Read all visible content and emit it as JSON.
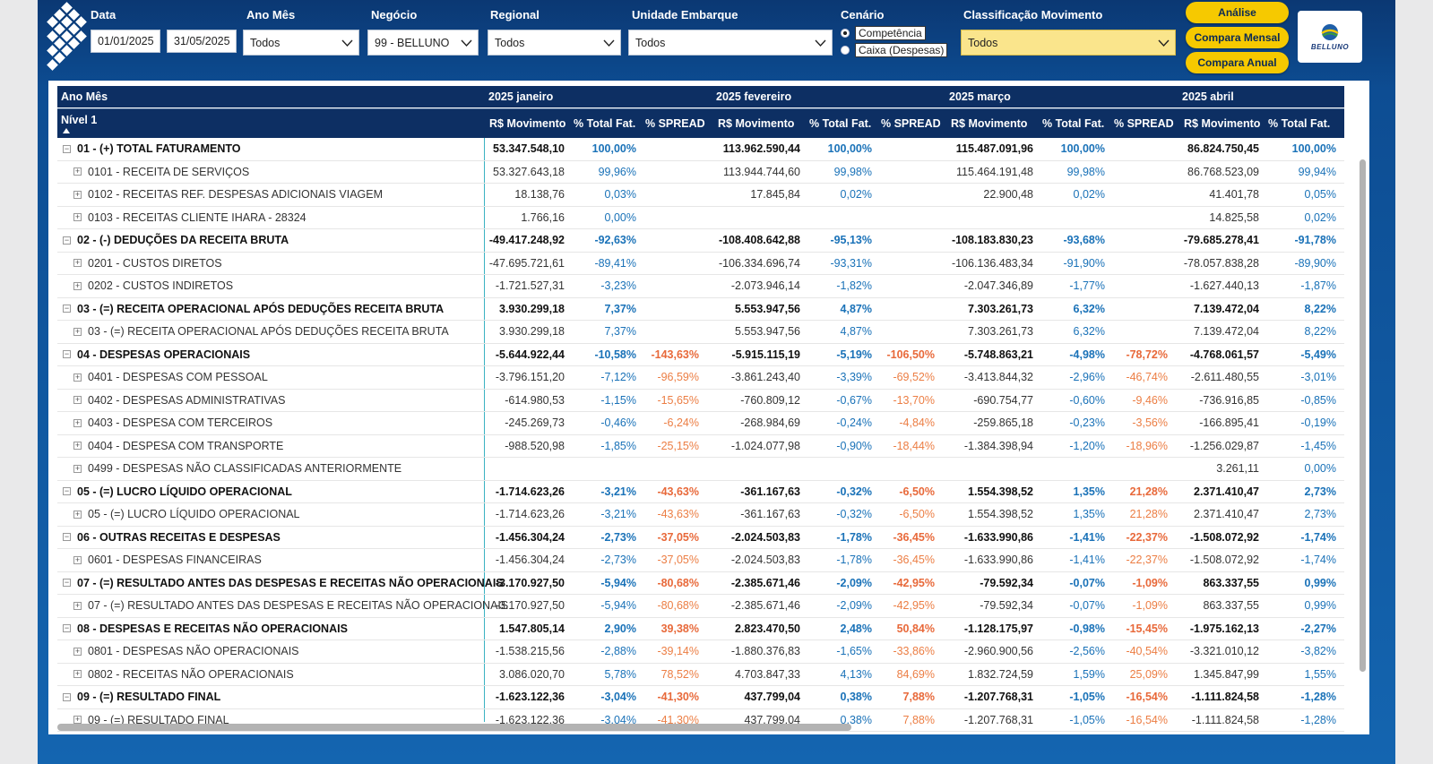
{
  "filters": {
    "data_label": "Data",
    "date_start": "01/01/2025",
    "date_end": "31/05/2025",
    "ano_mes_label": "Ano Mês",
    "ano_mes_value": "Todos",
    "negocio_label": "Negócio",
    "negocio_value": "99 - BELLUNO",
    "regional_label": "Regional",
    "regional_value": "Todos",
    "unidade_label": "Unidade Embarque",
    "unidade_value": "Todos",
    "cenario_label": "Cenário",
    "cenario_options": [
      "Competência",
      "Caixa (Despesas)"
    ],
    "classificacao_label": "Classificação Movimento",
    "classificacao_value": "Todos"
  },
  "buttons": {
    "analise": "Análise",
    "compara_mensal": "Compara Mensal",
    "compara_anual": "Compara Anual"
  },
  "brand": {
    "name": "BELLUNO"
  },
  "table": {
    "header_top_label": "Ano Mês",
    "header_sub_label": "Nível 1",
    "months": [
      "2025 janeiro",
      "2025 fevereiro",
      "2025 março",
      "2025 abril"
    ],
    "col_labels": [
      "R$ Movimento",
      "% Total Fat.",
      "% SPREAD"
    ],
    "rows": [
      {
        "label": "01 - (+) TOTAL FATURAMENTO",
        "bold": true,
        "m": [
          [
            "53.347.548,10",
            "100,00%",
            ""
          ],
          [
            "113.962.590,44",
            "100,00%",
            ""
          ],
          [
            "115.487.091,96",
            "100,00%",
            ""
          ],
          [
            "86.824.750,45",
            "100,00%"
          ]
        ]
      },
      {
        "label": "0101 - RECEITA DE SERVIÇOS",
        "bold": false,
        "m": [
          [
            "53.327.643,18",
            "99,96%",
            ""
          ],
          [
            "113.944.744,60",
            "99,98%",
            ""
          ],
          [
            "115.464.191,48",
            "99,98%",
            ""
          ],
          [
            "86.768.523,09",
            "99,94%"
          ]
        ]
      },
      {
        "label": "0102 - RECEITAS REF. DESPESAS ADICIONAIS VIAGEM",
        "bold": false,
        "m": [
          [
            "18.138,76",
            "0,03%",
            ""
          ],
          [
            "17.845,84",
            "0,02%",
            ""
          ],
          [
            "22.900,48",
            "0,02%",
            ""
          ],
          [
            "41.401,78",
            "0,05%"
          ]
        ]
      },
      {
        "label": "0103 - RECEITAS CLIENTE IHARA - 28324",
        "bold": false,
        "m": [
          [
            "1.766,16",
            "0,00%",
            ""
          ],
          [
            "",
            "",
            ""
          ],
          [
            "",
            "",
            ""
          ],
          [
            "14.825,58",
            "0,02%"
          ]
        ]
      },
      {
        "label": "02 - (-) DEDUÇÕES DA RECEITA BRUTA",
        "bold": true,
        "m": [
          [
            "-49.417.248,92",
            "-92,63%",
            ""
          ],
          [
            "-108.408.642,88",
            "-95,13%",
            ""
          ],
          [
            "-108.183.830,23",
            "-93,68%",
            ""
          ],
          [
            "-79.685.278,41",
            "-91,78%"
          ]
        ]
      },
      {
        "label": "0201 - CUSTOS DIRETOS",
        "bold": false,
        "m": [
          [
            "-47.695.721,61",
            "-89,41%",
            ""
          ],
          [
            "-106.334.696,74",
            "-93,31%",
            ""
          ],
          [
            "-106.136.483,34",
            "-91,90%",
            ""
          ],
          [
            "-78.057.838,28",
            "-89,90%"
          ]
        ]
      },
      {
        "label": "0202 - CUSTOS INDIRETOS",
        "bold": false,
        "m": [
          [
            "-1.721.527,31",
            "-3,23%",
            ""
          ],
          [
            "-2.073.946,14",
            "-1,82%",
            ""
          ],
          [
            "-2.047.346,89",
            "-1,77%",
            ""
          ],
          [
            "-1.627.440,13",
            "-1,87%"
          ]
        ]
      },
      {
        "label": "03 - (=) RECEITA OPERACIONAL APÓS DEDUÇÕES RECEITA BRUTA",
        "bold": true,
        "m": [
          [
            "3.930.299,18",
            "7,37%",
            ""
          ],
          [
            "5.553.947,56",
            "4,87%",
            ""
          ],
          [
            "7.303.261,73",
            "6,32%",
            ""
          ],
          [
            "7.139.472,04",
            "8,22%"
          ]
        ]
      },
      {
        "label": "03 - (=) RECEITA OPERACIONAL APÓS DEDUÇÕES RECEITA BRUTA",
        "bold": false,
        "m": [
          [
            "3.930.299,18",
            "7,37%",
            ""
          ],
          [
            "5.553.947,56",
            "4,87%",
            ""
          ],
          [
            "7.303.261,73",
            "6,32%",
            ""
          ],
          [
            "7.139.472,04",
            "8,22%"
          ]
        ]
      },
      {
        "label": "04 - DESPESAS OPERACIONAIS",
        "bold": true,
        "m": [
          [
            "-5.644.922,44",
            "-10,58%",
            "-143,63%"
          ],
          [
            "-5.915.115,19",
            "-5,19%",
            "-106,50%"
          ],
          [
            "-5.748.863,21",
            "-4,98%",
            "-78,72%"
          ],
          [
            "-4.768.061,57",
            "-5,49%"
          ]
        ]
      },
      {
        "label": "0401 - DESPESAS COM PESSOAL",
        "bold": false,
        "m": [
          [
            "-3.796.151,20",
            "-7,12%",
            "-96,59%"
          ],
          [
            "-3.861.243,40",
            "-3,39%",
            "-69,52%"
          ],
          [
            "-3.413.844,32",
            "-2,96%",
            "-46,74%"
          ],
          [
            "-2.611.480,55",
            "-3,01%"
          ]
        ]
      },
      {
        "label": "0402 - DESPESAS ADMINISTRATIVAS",
        "bold": false,
        "m": [
          [
            "-614.980,53",
            "-1,15%",
            "-15,65%"
          ],
          [
            "-760.809,12",
            "-0,67%",
            "-13,70%"
          ],
          [
            "-690.754,77",
            "-0,60%",
            "-9,46%"
          ],
          [
            "-736.916,85",
            "-0,85%"
          ]
        ]
      },
      {
        "label": "0403 - DESPESA COM TERCEIROS",
        "bold": false,
        "m": [
          [
            "-245.269,73",
            "-0,46%",
            "-6,24%"
          ],
          [
            "-268.984,69",
            "-0,24%",
            "-4,84%"
          ],
          [
            "-259.865,18",
            "-0,23%",
            "-3,56%"
          ],
          [
            "-166.895,41",
            "-0,19%"
          ]
        ]
      },
      {
        "label": "0404 - DESPESA COM TRANSPORTE",
        "bold": false,
        "m": [
          [
            "-988.520,98",
            "-1,85%",
            "-25,15%"
          ],
          [
            "-1.024.077,98",
            "-0,90%",
            "-18,44%"
          ],
          [
            "-1.384.398,94",
            "-1,20%",
            "-18,96%"
          ],
          [
            "-1.256.029,87",
            "-1,45%"
          ]
        ]
      },
      {
        "label": "0499 - DESPESAS NÃO CLASSIFICADAS ANTERIORMENTE",
        "bold": false,
        "m": [
          [
            "",
            "",
            ""
          ],
          [
            "",
            "",
            ""
          ],
          [
            "",
            "",
            ""
          ],
          [
            "3.261,11",
            "0,00%"
          ]
        ]
      },
      {
        "label": "05 - (=) LUCRO LÍQUIDO OPERACIONAL",
        "bold": true,
        "m": [
          [
            "-1.714.623,26",
            "-3,21%",
            "-43,63%"
          ],
          [
            "-361.167,63",
            "-0,32%",
            "-6,50%"
          ],
          [
            "1.554.398,52",
            "1,35%",
            "21,28%"
          ],
          [
            "2.371.410,47",
            "2,73%"
          ]
        ]
      },
      {
        "label": "05 - (=) LUCRO LÍQUIDO OPERACIONAL",
        "bold": false,
        "m": [
          [
            "-1.714.623,26",
            "-3,21%",
            "-43,63%"
          ],
          [
            "-361.167,63",
            "-0,32%",
            "-6,50%"
          ],
          [
            "1.554.398,52",
            "1,35%",
            "21,28%"
          ],
          [
            "2.371.410,47",
            "2,73%"
          ]
        ]
      },
      {
        "label": "06 - OUTRAS RECEITAS E DESPESAS",
        "bold": true,
        "m": [
          [
            "-1.456.304,24",
            "-2,73%",
            "-37,05%"
          ],
          [
            "-2.024.503,83",
            "-1,78%",
            "-36,45%"
          ],
          [
            "-1.633.990,86",
            "-1,41%",
            "-22,37%"
          ],
          [
            "-1.508.072,92",
            "-1,74%"
          ]
        ]
      },
      {
        "label": "0601 - DESPESAS FINANCEIRAS",
        "bold": false,
        "m": [
          [
            "-1.456.304,24",
            "-2,73%",
            "-37,05%"
          ],
          [
            "-2.024.503,83",
            "-1,78%",
            "-36,45%"
          ],
          [
            "-1.633.990,86",
            "-1,41%",
            "-22,37%"
          ],
          [
            "-1.508.072,92",
            "-1,74%"
          ]
        ]
      },
      {
        "label": "07 - (=) RESULTADO ANTES DAS DESPESAS E RECEITAS NÃO OPERACIONAIS",
        "bold": true,
        "m": [
          [
            "-3.170.927,50",
            "-5,94%",
            "-80,68%"
          ],
          [
            "-2.385.671,46",
            "-2,09%",
            "-42,95%"
          ],
          [
            "-79.592,34",
            "-0,07%",
            "-1,09%"
          ],
          [
            "863.337,55",
            "0,99%"
          ]
        ]
      },
      {
        "label": "07 - (=) RESULTADO ANTES DAS DESPESAS E RECEITAS NÃO OPERACIONAIS",
        "bold": false,
        "m": [
          [
            "-3.170.927,50",
            "-5,94%",
            "-80,68%"
          ],
          [
            "-2.385.671,46",
            "-2,09%",
            "-42,95%"
          ],
          [
            "-79.592,34",
            "-0,07%",
            "-1,09%"
          ],
          [
            "863.337,55",
            "0,99%"
          ]
        ]
      },
      {
        "label": "08 - DESPESAS E RECEITAS NÃO OPERACIONAIS",
        "bold": true,
        "m": [
          [
            "1.547.805,14",
            "2,90%",
            "39,38%"
          ],
          [
            "2.823.470,50",
            "2,48%",
            "50,84%"
          ],
          [
            "-1.128.175,97",
            "-0,98%",
            "-15,45%"
          ],
          [
            "-1.975.162,13",
            "-2,27%"
          ]
        ]
      },
      {
        "label": "0801 - DESPESAS NÃO OPERACIONAIS",
        "bold": false,
        "m": [
          [
            "-1.538.215,56",
            "-2,88%",
            "-39,14%"
          ],
          [
            "-1.880.376,83",
            "-1,65%",
            "-33,86%"
          ],
          [
            "-2.960.900,56",
            "-2,56%",
            "-40,54%"
          ],
          [
            "-3.321.010,12",
            "-3,82%"
          ]
        ]
      },
      {
        "label": "0802 - RECEITAS NÃO OPERACIONAIS",
        "bold": false,
        "m": [
          [
            "3.086.020,70",
            "5,78%",
            "78,52%"
          ],
          [
            "4.703.847,33",
            "4,13%",
            "84,69%"
          ],
          [
            "1.832.724,59",
            "1,59%",
            "25,09%"
          ],
          [
            "1.345.847,99",
            "1,55%"
          ]
        ]
      },
      {
        "label": "09 - (=) RESULTADO FINAL",
        "bold": true,
        "m": [
          [
            "-1.623.122,36",
            "-3,04%",
            "-41,30%"
          ],
          [
            "437.799,04",
            "0,38%",
            "7,88%"
          ],
          [
            "-1.207.768,31",
            "-1,05%",
            "-16,54%"
          ],
          [
            "-1.111.824,58",
            "-1,28%"
          ]
        ]
      },
      {
        "label": "09 - (=) RESULTADO FINAL",
        "bold": false,
        "m": [
          [
            "-1.623.122,36",
            "-3,04%",
            "-41,30%"
          ],
          [
            "437.799,04",
            "0,38%",
            "7,88%"
          ],
          [
            "-1.207.768,31",
            "-1,05%",
            "-16,54%"
          ],
          [
            "-1.111.824,58",
            "-1,28%"
          ]
        ]
      }
    ]
  }
}
